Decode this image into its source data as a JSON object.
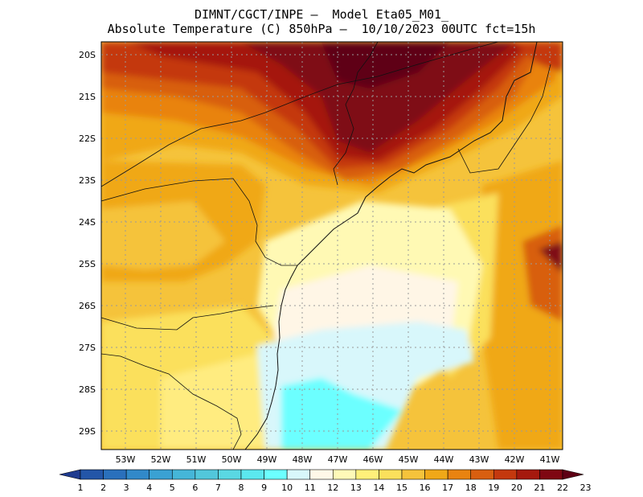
{
  "title": {
    "line1": "DIMNT/CGCT/INPE –  Model Eta05_M01_",
    "line2": "Absolute Temperature (C) 850hPa –  10/10/2023 00UTC fct=15h"
  },
  "axes": {
    "lat_labels": [
      "20S",
      "21S",
      "22S",
      "23S",
      "24S",
      "25S",
      "26S",
      "27S",
      "28S",
      "29S"
    ],
    "lon_labels": [
      "53W",
      "52W",
      "51W",
      "50W",
      "49W",
      "48W",
      "47W",
      "46W",
      "45W",
      "44W",
      "43W",
      "42W",
      "41W"
    ]
  },
  "colorbar": {
    "labels": [
      "1",
      "2",
      "3",
      "4",
      "5",
      "6",
      "7",
      "8",
      "9",
      "10",
      "11",
      "12",
      "13",
      "14",
      "15",
      "16",
      "17",
      "18",
      "19",
      "20",
      "21",
      "22",
      "23"
    ],
    "colors": [
      "#1f3b8f",
      "#2356a8",
      "#2a70bc",
      "#3189c9",
      "#3aa1d3",
      "#45b6d8",
      "#52c7db",
      "#5ad8e3",
      "#5be8ef",
      "#6cffff",
      "#d8f7fb",
      "#fff8e8",
      "#fff9b8",
      "#fff07a",
      "#fbe05c",
      "#f5c33b",
      "#f0a818",
      "#e98310",
      "#d85f10",
      "#c4380e",
      "#a5190e",
      "#7f0712",
      "#5e0014"
    ]
  },
  "field_colors": {
    "t11": "#d8f7fb",
    "t10": "#6cffff",
    "t12": "#fff6e6",
    "t13": "#fff9b4",
    "t14": "#ffec80",
    "t15": "#fbe05c",
    "t16": "#f5c33b",
    "t17": "#f0a818",
    "t18": "#e98310",
    "t19": "#d85f10",
    "t20": "#c4380e",
    "t21": "#a5190e",
    "t22": "#7f0712",
    "t23": "#5e0014"
  }
}
